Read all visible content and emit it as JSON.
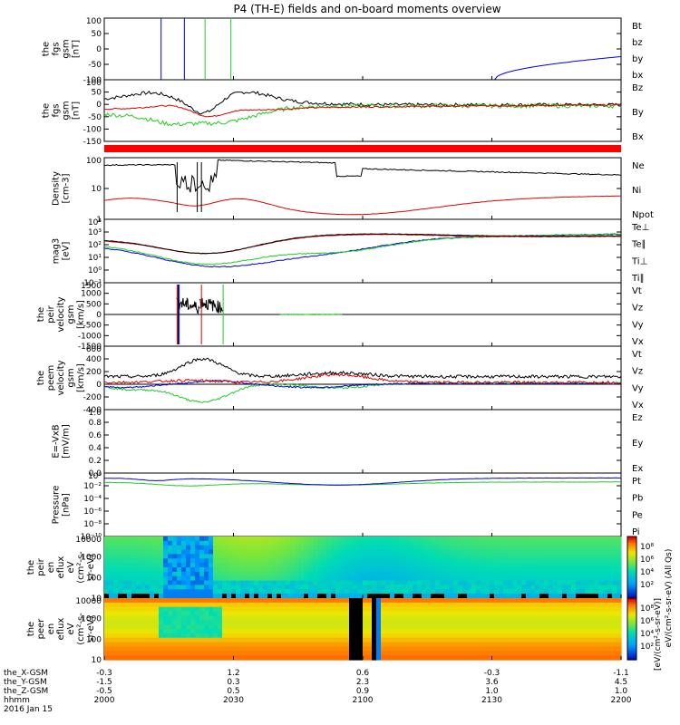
{
  "chart_data": {
    "type": "line",
    "title": "P4 (TH-E) fields and on-board moments overview",
    "colors": {
      "black": "#000000",
      "red": "#e00000",
      "green": "#22cc22",
      "blue": "#0000dd"
    },
    "panels": [
      {
        "id": "fgs",
        "ylabel": [
          "the",
          "fgs",
          "gsm",
          "[nT]"
        ],
        "yticks": [
          "100",
          "50",
          "0",
          "-50",
          "-100"
        ],
        "legend": [
          {
            "name": "Bt",
            "color": "#000000"
          },
          {
            "name": "bz",
            "color": "#e00000"
          },
          {
            "name": "by",
            "color": "#22cc22"
          },
          {
            "name": "bx",
            "color": "#0000dd"
          }
        ],
        "ylim": [
          -100,
          100
        ]
      },
      {
        "id": "fgs2",
        "ylabel": [
          "the",
          "fgs",
          "gsm",
          "[nT]"
        ],
        "yticks": [
          "100",
          "50",
          "0",
          "-50",
          "-100",
          "-150"
        ],
        "legend": [
          {
            "name": "Bz",
            "color": "#e00000"
          },
          {
            "name": "By",
            "color": "#22cc22"
          },
          {
            "name": "Bx",
            "color": "#000000"
          }
        ],
        "ylim": [
          -175,
          120
        ]
      },
      {
        "id": "density",
        "ylabel": [
          "Density",
          "[cm-3]"
        ],
        "yticks": [
          "100",
          "10",
          "1"
        ],
        "legend": [
          {
            "name": "Ne",
            "color": "#e00000"
          },
          {
            "name": "Ni",
            "color": "#000000"
          },
          {
            "name": "Npot",
            "color": "#0000dd"
          }
        ],
        "scale": "log"
      },
      {
        "id": "temp",
        "ylabel": [
          "mag3",
          "[eV]"
        ],
        "yticks": [
          "10⁴",
          "10³",
          "10²",
          "10¹",
          "10⁰",
          "10⁻¹"
        ],
        "legend": [
          {
            "name": "Te⊥",
            "color": "#e00000"
          },
          {
            "name": "Te∥",
            "color": "#000000"
          },
          {
            "name": "Ti⊥",
            "color": "#22cc22"
          },
          {
            "name": "Ti∥",
            "color": "#22cc22"
          }
        ],
        "scale": "log"
      },
      {
        "id": "peirv",
        "ylabel": [
          "the",
          "peir",
          "velocity",
          "gsm",
          "[km/s]"
        ],
        "yticks": [
          "1500",
          "1000",
          "500",
          "0",
          "-500",
          "-1000",
          "-1500"
        ],
        "legend": [
          {
            "name": "Vt",
            "color": "#000000"
          },
          {
            "name": "Vz",
            "color": "#e00000"
          },
          {
            "name": "Vy",
            "color": "#22cc22"
          },
          {
            "name": "Vx",
            "color": "#0000dd"
          }
        ],
        "ylim": [
          -1500,
          1500
        ]
      },
      {
        "id": "peemv",
        "ylabel": [
          "the",
          "peem",
          "velocity",
          "gsm",
          "[km/s]"
        ],
        "yticks": [
          "600",
          "400",
          "200",
          "0",
          "-200",
          "-400"
        ],
        "legend": [
          {
            "name": "Vt",
            "color": "#000000"
          },
          {
            "name": "Vz",
            "color": "#e00000"
          },
          {
            "name": "Vy",
            "color": "#22cc22"
          },
          {
            "name": "Vx",
            "color": "#0000dd"
          }
        ],
        "ylim": [
          -400,
          600
        ]
      },
      {
        "id": "efield",
        "ylabel": [
          "E=-VxB",
          "[mV/m]"
        ],
        "yticks": [
          "1.0",
          "0.8",
          "0.6",
          "0.4",
          "0.2",
          "0.0"
        ],
        "legend": [
          {
            "name": "Ez",
            "color": "#e00000"
          },
          {
            "name": "Ey",
            "color": "#22cc22"
          },
          {
            "name": "Ex",
            "color": "#0000dd"
          }
        ],
        "ylim": [
          0,
          1
        ]
      },
      {
        "id": "pressure",
        "ylabel": [
          "Pressure",
          "[nPa]"
        ],
        "yticks": [
          "10⁰",
          "10⁻²",
          "10⁻⁴",
          "10⁻⁶",
          "10⁻⁸",
          "10⁻¹⁰"
        ],
        "legend": [
          {
            "name": "Pt",
            "color": "#000000"
          },
          {
            "name": "Pb",
            "color": "#e00000"
          },
          {
            "name": "Pe",
            "color": "#22cc22"
          },
          {
            "name": "Pi",
            "color": "#0000dd"
          }
        ],
        "scale": "log"
      },
      {
        "id": "peir_en",
        "ylabel": [
          "the",
          "peir",
          "en",
          "eflux",
          "eV",
          "(cm²-s-",
          "sr-eV)"
        ],
        "yticks": [
          "10000",
          "1000",
          "100",
          "10"
        ],
        "type": "spectrogram"
      },
      {
        "id": "peer_en",
        "ylabel": [
          "the",
          "peer",
          "en",
          "eflux",
          "eV",
          "(cm²-s-",
          "sr-eV)"
        ],
        "yticks": [
          "10000",
          "1000",
          "100",
          "10"
        ],
        "type": "spectrogram"
      }
    ],
    "colorbars": [
      {
        "ticks": [
          "10⁸",
          "10⁶",
          "10⁴",
          "10²"
        ],
        "label": "eV/(cm²-s-sr-eV) (All Qs)"
      },
      {
        "ticks": [
          "10⁸",
          "10⁶",
          "10⁴",
          "10²"
        ],
        "label": "[eV/(cm²-s-sr-eV)]"
      }
    ],
    "xaxis": {
      "rows": [
        {
          "label": "the_X-GSM",
          "values": [
            "-0.3",
            "1.2",
            "0.6",
            "-0.3",
            "-1.1"
          ]
        },
        {
          "label": "the_Y-GSM",
          "values": [
            "-1.5",
            "0.3",
            "2.3",
            "3.6",
            "4.5"
          ]
        },
        {
          "label": "the_Z-GSM",
          "values": [
            "-0.5",
            "0.5",
            "0.9",
            "1.0",
            "1.0"
          ]
        },
        {
          "label": "hhmm",
          "values": [
            "2000",
            "2030",
            "2100",
            "2130",
            "2200"
          ]
        }
      ],
      "date": "2016 Jan 15"
    }
  }
}
